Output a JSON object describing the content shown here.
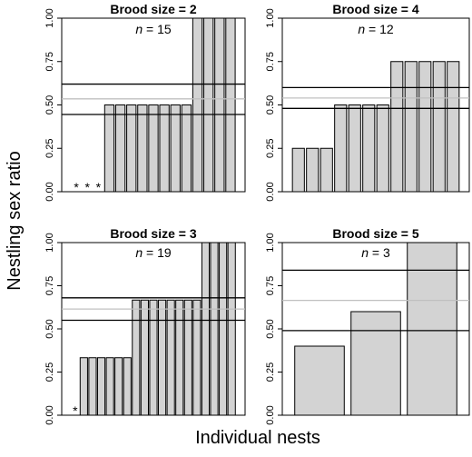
{
  "figure": {
    "ylabel": "Nestling sex ratio",
    "xlabel": "Individual nests"
  },
  "chart_data": [
    {
      "type": "bar",
      "title_prefix": "Brood size = ",
      "title_value": "2",
      "n_prefix": "n",
      "n_suffix": " = 15",
      "ylim": [
        0,
        1
      ],
      "yticks": [
        "0.00",
        "0.25",
        "0.50",
        "0.75",
        "1.00"
      ],
      "values": [
        0,
        0,
        0,
        0.5,
        0.5,
        0.5,
        0.5,
        0.5,
        0.5,
        0.5,
        0.5,
        1,
        1,
        1,
        1
      ],
      "zero_markers": "*",
      "reference_lines": {
        "upper": 0.62,
        "mean": 0.535,
        "lower": 0.445
      }
    },
    {
      "type": "bar",
      "title_prefix": "Brood size = ",
      "title_value": "4",
      "n_prefix": "n",
      "n_suffix": " = 12",
      "ylim": [
        0,
        1
      ],
      "yticks": [
        "0.00",
        "0.25",
        "0.50",
        "0.75",
        "1.00"
      ],
      "values": [
        0.25,
        0.25,
        0.25,
        0.5,
        0.5,
        0.5,
        0.5,
        0.75,
        0.75,
        0.75,
        0.75,
        0.75
      ],
      "zero_markers": "*",
      "reference_lines": {
        "upper": 0.6,
        "mean": 0.54,
        "lower": 0.48
      }
    },
    {
      "type": "bar",
      "title_prefix": "Brood size = ",
      "title_value": "3",
      "n_prefix": "n",
      "n_suffix": " = 19",
      "ylim": [
        0,
        1
      ],
      "yticks": [
        "0.00",
        "0.25",
        "0.50",
        "0.75",
        "1.00"
      ],
      "values": [
        0,
        0.333,
        0.333,
        0.333,
        0.333,
        0.333,
        0.333,
        0.667,
        0.667,
        0.667,
        0.667,
        0.667,
        0.667,
        0.667,
        0.667,
        1,
        1,
        1,
        1
      ],
      "zero_markers": "*",
      "reference_lines": {
        "upper": 0.68,
        "mean": 0.615,
        "lower": 0.55
      }
    },
    {
      "type": "bar",
      "title_prefix": "Brood size = ",
      "title_value": "5",
      "n_prefix": "n",
      "n_suffix": " = 3",
      "ylim": [
        0,
        1
      ],
      "yticks": [
        "0.00",
        "0.25",
        "0.50",
        "0.75",
        "1.00"
      ],
      "values": [
        0.4,
        0.6,
        1.0
      ],
      "zero_markers": "*",
      "reference_lines": {
        "upper": 0.84,
        "mean": 0.665,
        "lower": 0.49
      }
    }
  ],
  "colors": {
    "bar_fill": "#d3d3d3",
    "bar_stroke": "#000000",
    "ci_line": "#000000",
    "mean_line": "#c0c0c0"
  }
}
